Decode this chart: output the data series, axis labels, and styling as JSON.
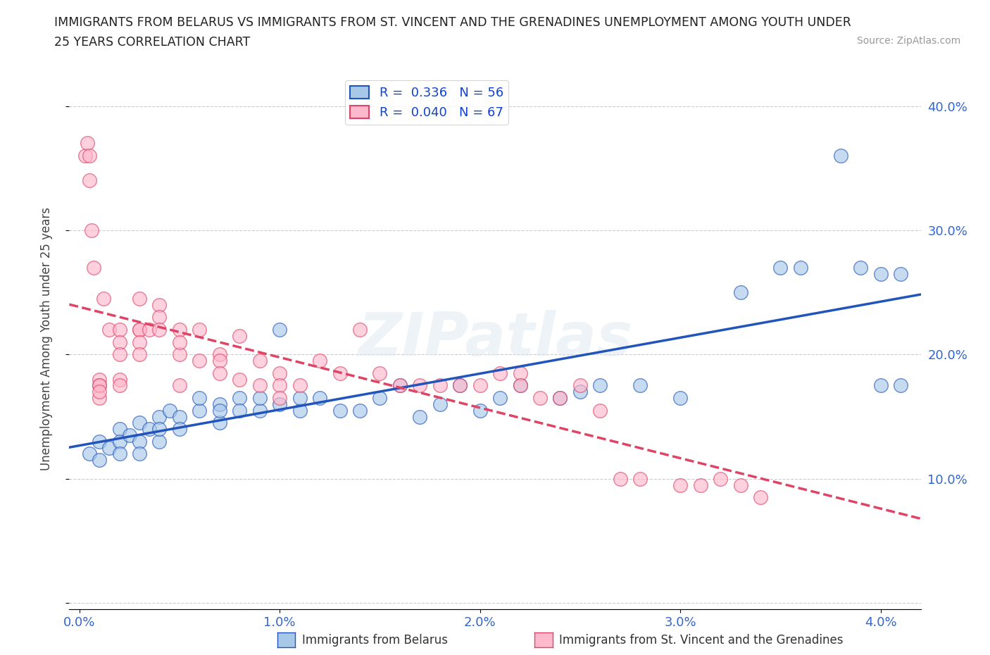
{
  "title_line1": "IMMIGRANTS FROM BELARUS VS IMMIGRANTS FROM ST. VINCENT AND THE GRENADINES UNEMPLOYMENT AMONG YOUTH UNDER",
  "title_line2": "25 YEARS CORRELATION CHART",
  "source": "Source: ZipAtlas.com",
  "ylabel": "Unemployment Among Youth under 25 years",
  "xlim": [
    -0.0005,
    0.042
  ],
  "ylim": [
    -0.005,
    0.43
  ],
  "x_ticks": [
    0.0,
    0.01,
    0.02,
    0.03,
    0.04
  ],
  "x_tick_labels": [
    "0.0%",
    "1.0%",
    "2.0%",
    "3.0%",
    "4.0%"
  ],
  "y_ticks": [
    0.0,
    0.1,
    0.2,
    0.3,
    0.4
  ],
  "y_tick_labels": [
    "",
    "10.0%",
    "20.0%",
    "30.0%",
    "40.0%"
  ],
  "legend_r1": "R =  0.336   N = 56",
  "legend_r2": "R =  0.040   N = 67",
  "color_blue": "#a8c8e8",
  "color_pink": "#ffb8cc",
  "trendline_blue": "#2255bb",
  "trendline_pink": "#dd4466",
  "grid_color": "#cccccc",
  "background_color": "#ffffff",
  "legend_label1": "Immigrants from Belarus",
  "legend_label2": "Immigrants from St. Vincent and the Grenadines",
  "blue_x": [
    0.0005,
    0.001,
    0.001,
    0.0015,
    0.002,
    0.002,
    0.002,
    0.0025,
    0.003,
    0.003,
    0.003,
    0.0035,
    0.004,
    0.004,
    0.004,
    0.0045,
    0.005,
    0.005,
    0.006,
    0.006,
    0.007,
    0.007,
    0.007,
    0.008,
    0.008,
    0.009,
    0.009,
    0.01,
    0.01,
    0.011,
    0.011,
    0.012,
    0.013,
    0.014,
    0.015,
    0.016,
    0.017,
    0.018,
    0.019,
    0.02,
    0.021,
    0.022,
    0.024,
    0.025,
    0.026,
    0.028,
    0.03,
    0.033,
    0.035,
    0.036,
    0.038,
    0.039,
    0.04,
    0.04,
    0.041,
    0.041
  ],
  "blue_y": [
    0.12,
    0.13,
    0.115,
    0.125,
    0.14,
    0.13,
    0.12,
    0.135,
    0.13,
    0.145,
    0.12,
    0.14,
    0.13,
    0.15,
    0.14,
    0.155,
    0.15,
    0.14,
    0.155,
    0.165,
    0.16,
    0.145,
    0.155,
    0.165,
    0.155,
    0.155,
    0.165,
    0.22,
    0.16,
    0.155,
    0.165,
    0.165,
    0.155,
    0.155,
    0.165,
    0.175,
    0.15,
    0.16,
    0.175,
    0.155,
    0.165,
    0.175,
    0.165,
    0.17,
    0.175,
    0.175,
    0.165,
    0.25,
    0.27,
    0.27,
    0.36,
    0.27,
    0.265,
    0.175,
    0.265,
    0.175
  ],
  "pink_x": [
    0.0003,
    0.0004,
    0.0005,
    0.0005,
    0.0006,
    0.0007,
    0.001,
    0.001,
    0.001,
    0.001,
    0.001,
    0.0012,
    0.0015,
    0.002,
    0.002,
    0.002,
    0.002,
    0.002,
    0.003,
    0.003,
    0.003,
    0.003,
    0.003,
    0.0035,
    0.004,
    0.004,
    0.004,
    0.005,
    0.005,
    0.005,
    0.005,
    0.006,
    0.006,
    0.007,
    0.007,
    0.007,
    0.008,
    0.008,
    0.009,
    0.009,
    0.01,
    0.01,
    0.01,
    0.011,
    0.012,
    0.013,
    0.014,
    0.015,
    0.016,
    0.017,
    0.018,
    0.019,
    0.02,
    0.021,
    0.022,
    0.022,
    0.023,
    0.024,
    0.025,
    0.026,
    0.027,
    0.028,
    0.03,
    0.031,
    0.032,
    0.033,
    0.034
  ],
  "pink_y": [
    0.36,
    0.37,
    0.36,
    0.34,
    0.3,
    0.27,
    0.18,
    0.175,
    0.165,
    0.175,
    0.17,
    0.245,
    0.22,
    0.18,
    0.22,
    0.21,
    0.2,
    0.175,
    0.22,
    0.245,
    0.22,
    0.21,
    0.2,
    0.22,
    0.24,
    0.23,
    0.22,
    0.2,
    0.22,
    0.21,
    0.175,
    0.22,
    0.195,
    0.2,
    0.195,
    0.185,
    0.215,
    0.18,
    0.195,
    0.175,
    0.185,
    0.175,
    0.165,
    0.175,
    0.195,
    0.185,
    0.22,
    0.185,
    0.175,
    0.175,
    0.175,
    0.175,
    0.175,
    0.185,
    0.185,
    0.175,
    0.165,
    0.165,
    0.175,
    0.155,
    0.1,
    0.1,
    0.095,
    0.095,
    0.1,
    0.095,
    0.085
  ]
}
